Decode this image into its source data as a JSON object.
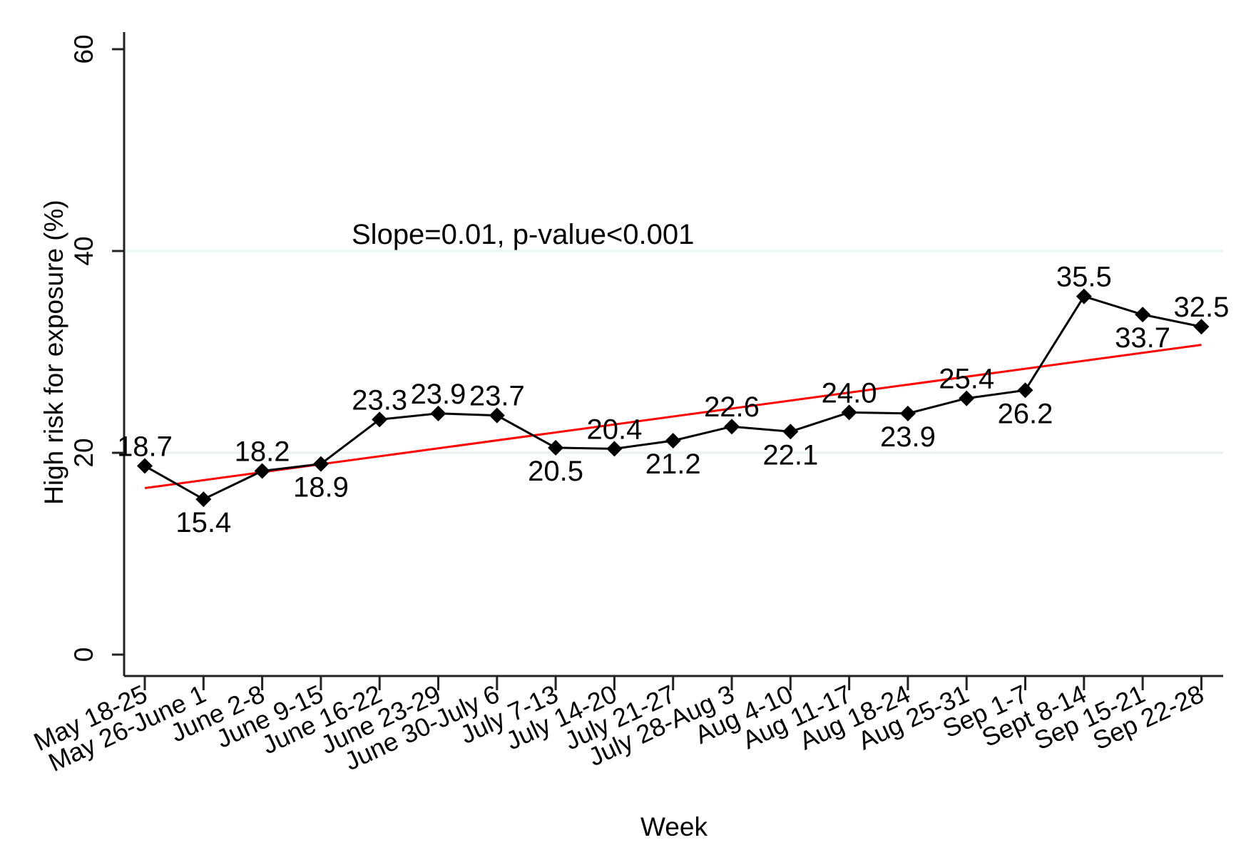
{
  "chart_data": {
    "type": "line",
    "title": "",
    "xlabel": "Week",
    "ylabel": "High risk for exposure (%)",
    "ylim": [
      0,
      60
    ],
    "yticks": [
      0,
      20,
      40,
      60
    ],
    "grid": {
      "y": true,
      "x": false,
      "color": "#eaf2f3"
    },
    "annotation": "Slope=0.01, p-value<0.001",
    "categories": [
      "May 18-25",
      "May 26-June 1",
      "June 2-8",
      "June 9-15",
      "June 16-22",
      "June 23-29",
      "June 30-July 6",
      "July 7-13",
      "July 14-20",
      "July 21-27",
      "July 28-Aug 3",
      "Aug 4-10",
      "Aug 11-17",
      "Aug 18-24",
      "Aug 25-31",
      "Sep 1-7",
      "Sept 8-14",
      "Sep 15-21",
      "Sep 22-28"
    ],
    "series": [
      {
        "name": "High risk for exposure (%)",
        "color": "#000000",
        "marker": "diamond",
        "values": [
          18.7,
          15.4,
          18.2,
          18.9,
          23.3,
          23.9,
          23.7,
          20.5,
          20.4,
          21.2,
          22.6,
          22.1,
          24.0,
          23.9,
          25.4,
          26.2,
          35.5,
          33.7,
          32.5
        ],
        "data_labels": [
          "18.7",
          "15.4",
          "18.2",
          "18.9",
          "23.3",
          "23.9",
          "23.7",
          "20.5",
          "20.4",
          "21.2",
          "22.6",
          "22.1",
          "24.0",
          "23.9",
          "25.4",
          "26.2",
          "35.5",
          "33.7",
          "32.5"
        ],
        "label_positions": [
          "above",
          "below",
          "above",
          "below",
          "above",
          "above",
          "above",
          "below",
          "above",
          "below",
          "above",
          "below",
          "above",
          "below",
          "above",
          "below",
          "above",
          "below",
          "above"
        ]
      },
      {
        "name": "Linear fit",
        "color": "#ff0000",
        "type": "line",
        "start": 16.5,
        "end": 30.7
      }
    ]
  }
}
